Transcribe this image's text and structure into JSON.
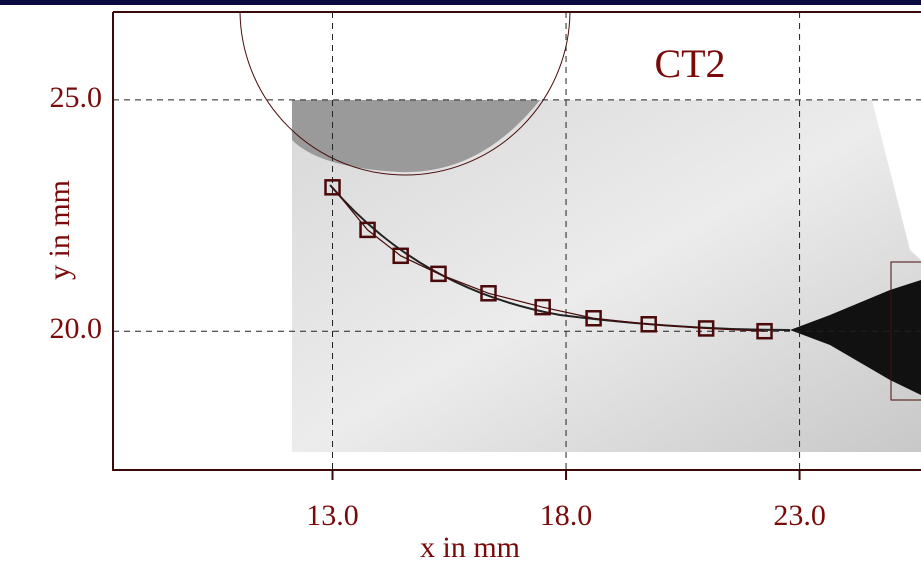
{
  "chart_data": {
    "type": "line",
    "title": "CT2",
    "x_label": "x in mm",
    "y_label": "y in mm",
    "x": [
      13.0,
      13.75,
      14.46,
      15.27,
      16.34,
      17.5,
      18.59,
      19.77,
      21.0,
      22.25
    ],
    "values": [
      23.11,
      22.19,
      21.63,
      21.24,
      20.82,
      20.52,
      20.28,
      20.15,
      20.06,
      20.0
    ],
    "color": "#4a0a0a",
    "xlim": [
      8.3,
      25.6
    ],
    "ylim": [
      17.0,
      26.9
    ],
    "xticks": [
      {
        "value": 13,
        "label": "13.0"
      },
      {
        "value": 18,
        "label": "18.0"
      },
      {
        "value": 23,
        "label": "23.0"
      }
    ],
    "yticks": [
      {
        "value": 20,
        "label": "20.0"
      },
      {
        "value": 25,
        "label": "25.0"
      }
    ],
    "grid": true
  }
}
